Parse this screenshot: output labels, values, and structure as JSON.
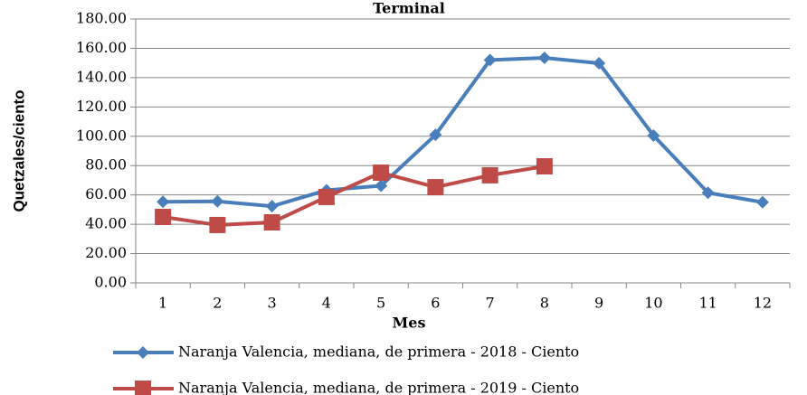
{
  "chart_data": {
    "type": "line",
    "title": "Terminal",
    "x_label": "Mes",
    "y_label": "Quetzales/ciento",
    "categories": [
      "1",
      "2",
      "3",
      "4",
      "5",
      "6",
      "7",
      "8",
      "9",
      "10",
      "11",
      "12"
    ],
    "series": [
      {
        "name": "Naranja Valencia, mediana, de primera - 2018 - Ciento",
        "color": "#4a7ebb",
        "marker": "diamond",
        "values": [
          55.3,
          55.6,
          52.3,
          63.2,
          66.3,
          101.0,
          152.0,
          153.5,
          149.8,
          100.5,
          61.5,
          55.0
        ]
      },
      {
        "name": "Naranja Valencia, mediana, de primera - 2019 - Ciento",
        "color": "#be4b48",
        "marker": "square",
        "values": [
          45.0,
          39.5,
          41.3,
          58.6,
          75.2,
          65.3,
          73.4,
          79.5,
          null,
          null,
          null,
          null
        ]
      }
    ],
    "ylim": [
      0,
      180
    ],
    "yticks": [
      {
        "value": 0,
        "label": "0.00"
      },
      {
        "value": 20,
        "label": "20.00"
      },
      {
        "value": 40,
        "label": "40.00"
      },
      {
        "value": 60,
        "label": "60.00"
      },
      {
        "value": 80,
        "label": "80.00"
      },
      {
        "value": 100,
        "label": "100.00"
      },
      {
        "value": 120,
        "label": "120.00"
      },
      {
        "value": 140,
        "label": "140.00"
      },
      {
        "value": 160,
        "label": "160.00"
      },
      {
        "value": 180,
        "label": "180.00"
      }
    ],
    "grid": true,
    "legend": "bottom"
  }
}
